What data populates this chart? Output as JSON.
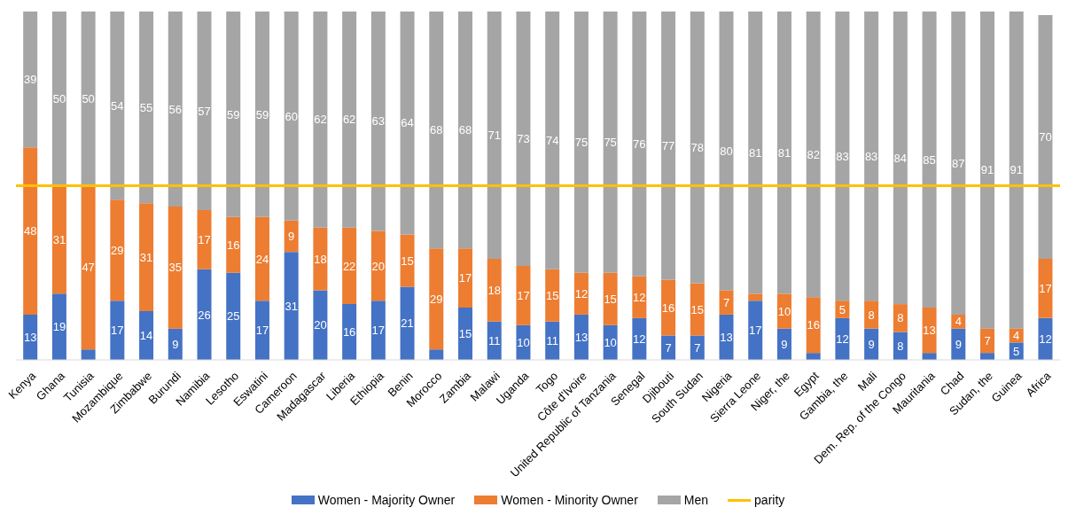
{
  "chart_data": {
    "type": "bar",
    "stacked": true,
    "categories": [
      "Kenya",
      "Ghana",
      "Tunisia",
      "Mozambique",
      "Zimbabwe",
      "Burundi",
      "Namibia",
      "Lesotho",
      "Eswatini",
      "Cameroon",
      "Madagascar",
      "Liberia",
      "Ethiopia",
      "Benin",
      "Morocco",
      "Zambia",
      "Malawi",
      "Uganda",
      "Togo",
      "Côte d'Ivoire",
      "United Republic of Tanzania",
      "Senegal",
      "Djibouti",
      "South Sudan",
      "Nigeria",
      "Sierra Leone",
      "Niger, the",
      "Egypt",
      "Gambia, the",
      "Mali",
      "Dem. Rep. of the Congo",
      "Mauritania",
      "Chad",
      "Sudan, the",
      "Guinea",
      "Africa"
    ],
    "series": [
      {
        "name": "Women - Majority Owner",
        "color": "#4472c4",
        "values": [
          13,
          19,
          3,
          17,
          14,
          9,
          26,
          25,
          17,
          31,
          20,
          16,
          17,
          21,
          3,
          15,
          11,
          10,
          11,
          13,
          10,
          12,
          7,
          7,
          13,
          17,
          9,
          2,
          12,
          9,
          8,
          2,
          9,
          2,
          5,
          12
        ],
        "value_labels": [
          "13",
          "19",
          null,
          "17",
          "14",
          "9",
          "26",
          "25",
          "17",
          "31",
          "20",
          "16",
          "17",
          "21",
          null,
          "15",
          "11",
          "10",
          "11",
          "13",
          "10",
          "12",
          "7",
          "7",
          "13",
          "17",
          "9",
          null,
          "12",
          "9",
          "8",
          null,
          "9",
          null,
          "5",
          "12"
        ]
      },
      {
        "name": "Women - Minority Owner",
        "color": "#ed7d31",
        "values": [
          48,
          31,
          47,
          29,
          31,
          35,
          17,
          16,
          24,
          9,
          18,
          22,
          20,
          15,
          29,
          17,
          18,
          17,
          15,
          12,
          15,
          12,
          16,
          15,
          7,
          2,
          10,
          16,
          5,
          8,
          8,
          13,
          4,
          7,
          4,
          17
        ],
        "value_labels": [
          "48",
          "31",
          "47",
          "29",
          "31",
          "35",
          "17",
          "16",
          "24",
          "9",
          "18",
          "22",
          "20",
          "15",
          "29",
          "17",
          "18",
          "17",
          "15",
          "12",
          "15",
          "12",
          "16",
          "15",
          "7",
          null,
          "10",
          "16",
          "5",
          "8",
          "8",
          "13",
          "4",
          "7",
          "4",
          "17"
        ]
      },
      {
        "name": "Men",
        "color": "#a5a5a5",
        "values": [
          39,
          50,
          50,
          54,
          55,
          56,
          57,
          59,
          59,
          60,
          62,
          62,
          63,
          64,
          68,
          68,
          71,
          73,
          74,
          75,
          75,
          76,
          77,
          78,
          80,
          81,
          81,
          82,
          83,
          83,
          84,
          85,
          87,
          91,
          91,
          70
        ],
        "value_labels": [
          "39",
          "50",
          "50",
          "54",
          "55",
          "56",
          "57",
          "59",
          "59",
          "60",
          "62",
          "62",
          "63",
          "64",
          "68",
          "68",
          "71",
          "73",
          "74",
          "75",
          "75",
          "76",
          "77",
          "78",
          "80",
          "81",
          "81",
          "82",
          "83",
          "83",
          "84",
          "85",
          "87",
          "91",
          "91",
          "70"
        ]
      }
    ],
    "ylim": [
      0,
      100
    ],
    "tick_labels": "x",
    "grid": false,
    "legend": "bottom",
    "ref_lines": [
      {
        "axis": "y",
        "value": 50,
        "label": "parity",
        "color": "#ffc000"
      }
    ]
  }
}
